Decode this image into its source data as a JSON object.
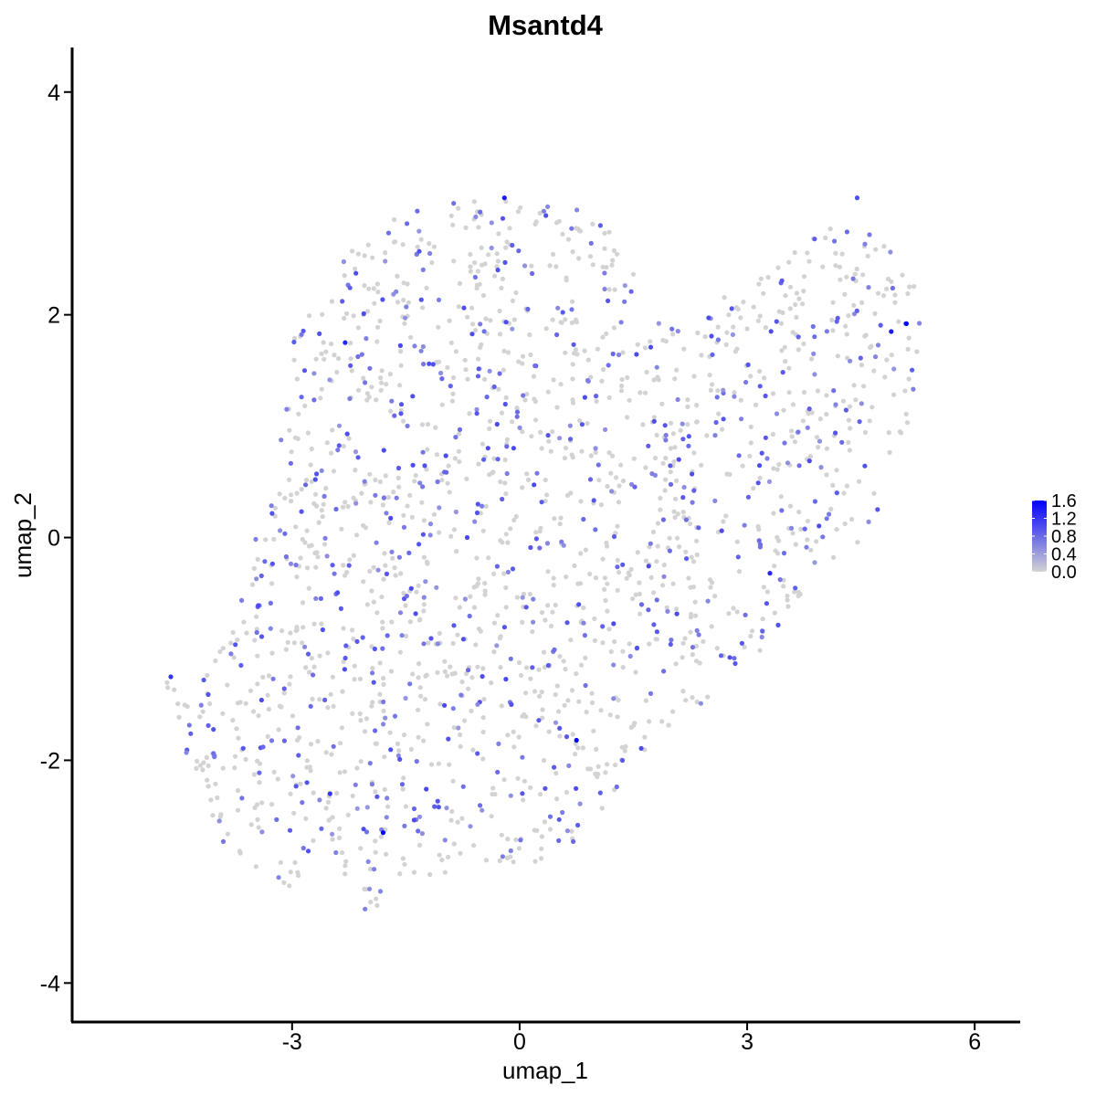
{
  "chart_data": {
    "type": "scatter",
    "title": "Msantd4",
    "xlabel": "umap_1",
    "ylabel": "umap_2",
    "xlim": [
      -5.9,
      6.6
    ],
    "ylim": [
      -4.35,
      4.4
    ],
    "xticks": [
      -3,
      0,
      3,
      6
    ],
    "yticks": [
      -4,
      -2,
      0,
      2,
      4
    ],
    "xtick_labels": [
      "-3",
      "0",
      "3",
      "6"
    ],
    "ytick_labels": [
      "-4",
      "-2",
      "0",
      "2",
      "4"
    ],
    "grid": false,
    "legend": {
      "placement": "right",
      "type": "colorbar",
      "range": [
        0,
        1.6
      ],
      "ticks": [
        0.0,
        0.4,
        0.8,
        1.2,
        1.6
      ],
      "labels": [
        "0.0",
        "0.4",
        "0.8",
        "1.2",
        "1.6"
      ],
      "low_color": "#d3d3d3",
      "high_color": "#0000ff"
    },
    "highlight_points": [
      {
        "x": 5.1,
        "y": 1.92,
        "value": 1.6
      },
      {
        "x": 0.75,
        "y": -1.82,
        "value": 1.6
      },
      {
        "x": -1.8,
        "y": -2.65,
        "value": 1.6
      },
      {
        "x": -0.2,
        "y": 3.05,
        "value": 1.4
      },
      {
        "x": 4.9,
        "y": 1.85,
        "value": 1.4
      },
      {
        "x": -2.3,
        "y": 1.75,
        "value": 1.3
      },
      {
        "x": 3.3,
        "y": -0.32,
        "value": 1.3
      },
      {
        "x": -4.6,
        "y": -1.25,
        "value": 1.2
      },
      {
        "x": -2.5,
        "y": -2.3,
        "value": 1.2
      },
      {
        "x": 4.45,
        "y": 3.05,
        "value": 1.0
      }
    ],
    "cluster_shape": [
      [
        -4.7,
        -1.2
      ],
      [
        -4.3,
        -1.4
      ],
      [
        -3.6,
        -0.3
      ],
      [
        -3.2,
        0.8
      ],
      [
        -3.0,
        1.8
      ],
      [
        -2.4,
        2.5
      ],
      [
        -1.8,
        2.9
      ],
      [
        -0.6,
        3.05
      ],
      [
        0.4,
        3.05
      ],
      [
        1.2,
        2.85
      ],
      [
        1.6,
        2.2
      ],
      [
        2.0,
        1.95
      ],
      [
        2.8,
        2.2
      ],
      [
        3.6,
        2.55
      ],
      [
        4.3,
        2.9
      ],
      [
        4.8,
        2.7
      ],
      [
        5.3,
        2.2
      ],
      [
        5.3,
        1.5
      ],
      [
        5.0,
        0.7
      ],
      [
        4.7,
        0.2
      ],
      [
        4.3,
        -0.2
      ],
      [
        3.8,
        -0.5
      ],
      [
        3.4,
        -0.9
      ],
      [
        2.8,
        -1.3
      ],
      [
        2.2,
        -1.6
      ],
      [
        1.5,
        -2.0
      ],
      [
        1.0,
        -2.6
      ],
      [
        0.4,
        -2.95
      ],
      [
        -0.4,
        -2.9
      ],
      [
        -1.2,
        -3.1
      ],
      [
        -2.0,
        -3.35
      ],
      [
        -2.5,
        -3.3
      ],
      [
        -3.3,
        -3.05
      ],
      [
        -4.0,
        -2.7
      ],
      [
        -4.3,
        -2.2
      ],
      [
        -4.5,
        -1.7
      ]
    ]
  }
}
